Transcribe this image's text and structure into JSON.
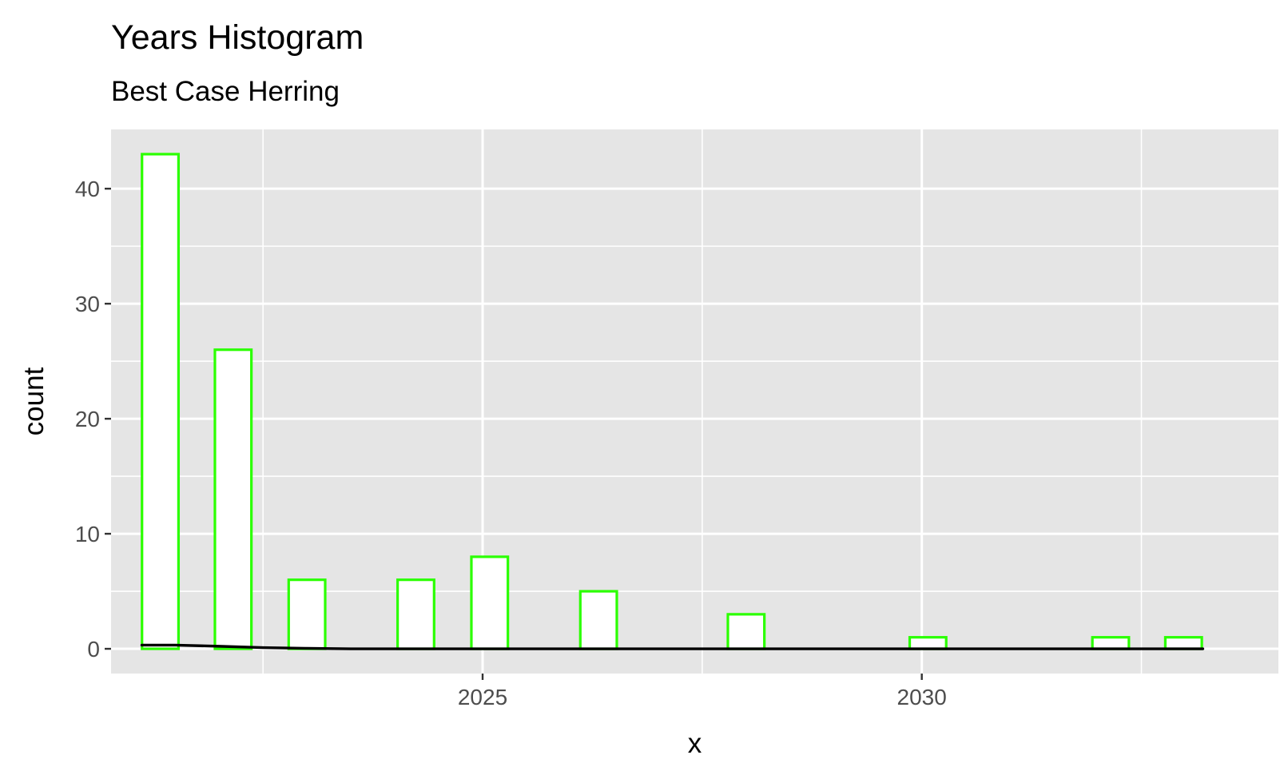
{
  "chart_data": {
    "type": "bar",
    "title": "Years Histogram",
    "subtitle": "Best Case Herring",
    "xlabel": "x",
    "ylabel": "count",
    "xlim": [
      2020.77,
      2034.06
    ],
    "ylim": [
      -2.15,
      45.15
    ],
    "x_ticks": [
      {
        "value": 2025,
        "label": "2025"
      },
      {
        "value": 2030,
        "label": "2030"
      }
    ],
    "y_ticks": [
      {
        "value": 0,
        "label": "0"
      },
      {
        "value": 10,
        "label": "10"
      },
      {
        "value": 20,
        "label": "20"
      },
      {
        "value": 30,
        "label": "30"
      },
      {
        "value": 40,
        "label": "40"
      }
    ],
    "x_minor_gridlines": [
      2022.5,
      2027.5,
      2032.5
    ],
    "y_minor_gridlines": [
      5,
      15,
      25,
      35
    ],
    "bin_width": 0.4155,
    "bins": [
      {
        "x": 2021.33,
        "count": 43
      },
      {
        "x": 2022.16,
        "count": 26
      },
      {
        "x": 2023.0,
        "count": 6
      },
      {
        "x": 2024.24,
        "count": 6
      },
      {
        "x": 2025.08,
        "count": 8
      },
      {
        "x": 2026.32,
        "count": 5
      },
      {
        "x": 2028.0,
        "count": 3
      },
      {
        "x": 2030.07,
        "count": 1
      },
      {
        "x": 2032.15,
        "count": 1
      },
      {
        "x": 2032.98,
        "count": 1
      }
    ],
    "density_line": {
      "x": [
        2021.12,
        2021.5,
        2022.0,
        2022.5,
        2023.0,
        2023.5,
        2024.0,
        2025.0,
        2026.0,
        2027.0,
        2028.0,
        2029.0,
        2030.0,
        2031.0,
        2032.0,
        2033.2
      ],
      "y": [
        0.32,
        0.32,
        0.22,
        0.1,
        0.04,
        0.0,
        0.0,
        0.0,
        0.0,
        0.0,
        0.0,
        0.0,
        0.0,
        0.0,
        0.0,
        0.0
      ]
    },
    "grid": true,
    "panel_background": "#e5e5e5",
    "grid_color": "#ffffff",
    "bar_fill": "#ffffff",
    "bar_outline": "#2bff00",
    "line_color": "#000000",
    "tick_label_color": "#4d4d4d"
  }
}
